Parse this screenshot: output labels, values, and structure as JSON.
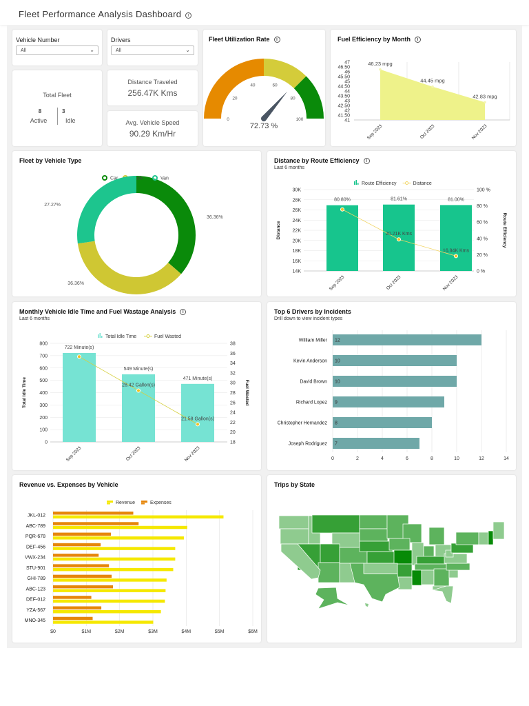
{
  "header": {
    "title": "Fleet Performance Analysis Dashboard"
  },
  "filters": {
    "vehicle": {
      "label": "Vehicle Number",
      "value": "All"
    },
    "drivers": {
      "label": "Drivers",
      "value": "All"
    }
  },
  "kpis": {
    "total_fleet": {
      "label": "Total Fleet",
      "active": "8",
      "active_label": "Active",
      "idle": "3",
      "idle_label": "Idle"
    },
    "distance": {
      "label": "Distance Traveled",
      "value": "256.47K Kms"
    },
    "speed": {
      "label": "Avg. Vehicle Speed",
      "value": "90.29 Km/Hr"
    }
  },
  "colors": {
    "orange": "#e68a00",
    "yellow": "#d4cc3a",
    "green": "#0a8a0a",
    "teal": "#1dc58e",
    "aqua": "#76e3d3",
    "fuel_area": "#eef28a",
    "driver_bar": "#6fa8a8",
    "revenue": "#f5e800",
    "expenses": "#e6860a"
  },
  "chart_data": [
    {
      "id": "gauge",
      "type": "gauge",
      "title": "Fleet Utilization Rate",
      "value": 72.73,
      "value_label": "72.73 %",
      "range": [
        0,
        100
      ],
      "ticks": [
        "0",
        "20",
        "40",
        "60",
        "80",
        "100"
      ],
      "bands": [
        {
          "from": 0,
          "to": 50,
          "color": "#e68a00"
        },
        {
          "from": 50,
          "to": 75,
          "color": "#d4cc3a"
        },
        {
          "from": 75,
          "to": 100,
          "color": "#0a8a0a"
        }
      ]
    },
    {
      "id": "fuel",
      "type": "area",
      "title": "Fuel Efficiency by Month",
      "categories": [
        "Sep 2023",
        "Oct 2023",
        "Nov 2023"
      ],
      "values": [
        46.23,
        44.45,
        42.83
      ],
      "labels": [
        "46.23 mpg",
        "44.45 mpg",
        "42.83 mpg"
      ],
      "ylim": [
        41,
        47
      ],
      "yticks": [
        "41",
        "41.50",
        "42",
        "42.50",
        "43",
        "43.50",
        "44",
        "44.50",
        "45",
        "45.50",
        "46",
        "46.50",
        "47"
      ]
    },
    {
      "id": "donut",
      "type": "pie",
      "title": "Fleet by Vehicle Type",
      "legend": [
        "Car",
        "Truck",
        "Van"
      ],
      "values": [
        36.36,
        36.36,
        27.27
      ],
      "labels": [
        "36.36%",
        "36.36%",
        "27.27%"
      ],
      "colors": [
        "#0a8a0a",
        "#cfc733",
        "#1dc58e"
      ],
      "legend_position": "top"
    },
    {
      "id": "route",
      "type": "bar+line",
      "title": "Distance by Route Efficiency",
      "subtitle": "Last 6 months",
      "categories": [
        "Sep 2023",
        "Oct 2023",
        "Nov 2023"
      ],
      "series": [
        {
          "name": "Route Efficiency",
          "type": "bar",
          "values": [
            80.8,
            81.61,
            81.0
          ],
          "labels": [
            "80.80%",
            "81.61%",
            "81.00%"
          ],
          "axis": "right"
        },
        {
          "name": "Distance",
          "type": "line",
          "values": [
            26.1,
            20.21,
            16.94
          ],
          "labels": [
            "",
            "20.21K Kms",
            "16.94K Kms"
          ],
          "axis": "left"
        }
      ],
      "ylabel": "Distance",
      "y2label": "Route Efficiency",
      "ylim": [
        14,
        30
      ],
      "yticks": [
        "14K",
        "16K",
        "18K",
        "20K",
        "22K",
        "24K",
        "26K",
        "28K",
        "30K"
      ],
      "y2lim": [
        0,
        100
      ],
      "y2ticks": [
        "0 %",
        "20 %",
        "40 %",
        "60 %",
        "80 %",
        "100 %"
      ]
    },
    {
      "id": "idle",
      "type": "bar+line",
      "title": "Monthly Vehicle Idle Time and Fuel Wastage Analysis",
      "subtitle": "Last 6 months",
      "categories": [
        "Sep 2023",
        "Oct 2023",
        "Nov 2023"
      ],
      "series": [
        {
          "name": "Total Idle Time",
          "type": "bar",
          "values": [
            722,
            549,
            471
          ],
          "labels": [
            "722 Minute(s)",
            "549 Minute(s)",
            "471 Minute(s)"
          ],
          "axis": "left"
        },
        {
          "name": "Fuel Wasted",
          "type": "line",
          "values": [
            35.3,
            28.42,
            21.58
          ],
          "labels": [
            "",
            "28.42 Gallon(s)",
            "21.58 Gallon(s)"
          ],
          "axis": "right"
        }
      ],
      "ylabel": "Total Idle Time",
      "y2label": "Fuel Wasted",
      "ylim": [
        0,
        800
      ],
      "yticks": [
        "0",
        "100",
        "200",
        "300",
        "400",
        "500",
        "600",
        "700",
        "800"
      ],
      "y2lim": [
        18,
        38
      ],
      "y2ticks": [
        "18",
        "20",
        "22",
        "24",
        "26",
        "28",
        "30",
        "32",
        "34",
        "36",
        "38"
      ]
    },
    {
      "id": "drivers",
      "type": "hbar",
      "title": "Top 6 Drivers by Incidents",
      "subtitle": "Drill down to view incident types",
      "categories": [
        "William Miller",
        "Kevin Anderson",
        "David Brown",
        "Richard Lopez",
        "Christopher Hernandez",
        "Joseph Rodriguez"
      ],
      "values": [
        12,
        10,
        10,
        9,
        8,
        7
      ],
      "xlim": [
        0,
        14
      ],
      "xticks": [
        "0",
        "2",
        "4",
        "6",
        "8",
        "10",
        "12",
        "14"
      ]
    },
    {
      "id": "revenue",
      "type": "hbar",
      "title": "Revenue vs. Expenses by Vehicle",
      "categories": [
        "JKL-012",
        "ABC-789",
        "PQR-678",
        "DEF-456",
        "VWX-234",
        "STU-901",
        "GHI-789",
        "ABC-123",
        "DEF-012",
        "YZA-567",
        "MNO-345"
      ],
      "series": [
        {
          "name": "Revenue",
          "values": [
            5.12,
            4.03,
            3.93,
            3.67,
            3.67,
            3.61,
            3.41,
            3.38,
            3.36,
            3.24,
            3.01
          ]
        },
        {
          "name": "Expenses",
          "values": [
            2.41,
            2.57,
            1.74,
            1.43,
            1.37,
            1.68,
            1.76,
            1.8,
            1.15,
            1.45,
            1.19
          ]
        }
      ],
      "unit": "$M",
      "xlim": [
        0,
        6
      ],
      "xticks": [
        "$0",
        "$1M",
        "$2M",
        "$3M",
        "$4M",
        "$5M",
        "$6M"
      ],
      "legend_position": "top"
    },
    {
      "id": "map",
      "type": "choropleth",
      "title": "Trips by State",
      "shade_levels": {
        "WA": 1,
        "OR": 1,
        "CA": 1,
        "ID": 1,
        "NV": 3,
        "MT": 3,
        "WY": 1,
        "UT": 3,
        "AZ": 2,
        "CO": 2,
        "NM": 1,
        "ND": 2,
        "SD": 2,
        "NE": 3,
        "KS": 3,
        "OK": 1,
        "TX": 2,
        "MN": 2,
        "IA": 2,
        "MO": 4,
        "AR": 3,
        "LA": 1,
        "WI": 2,
        "IL": 1,
        "MS": 4,
        "MI": 2,
        "IN": 2,
        "OH": 1,
        "KY": 3,
        "TN": 2,
        "AL": 1,
        "GA": 2,
        "FL": 1,
        "SC": 1,
        "NC": 2,
        "VA": 1,
        "WV": 1,
        "PA": 3,
        "NY": 2,
        "NE-region": 1,
        "NH": 4,
        "ME": 1,
        "AK": 2,
        "HI": 1
      },
      "shade_colors": [
        "#8fcb8f",
        "#5db35d",
        "#36a036",
        "#078a07"
      ]
    }
  ]
}
